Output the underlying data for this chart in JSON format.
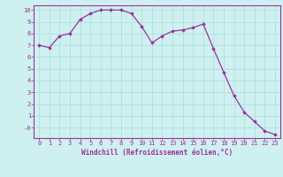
{
  "x": [
    0,
    1,
    2,
    3,
    4,
    5,
    6,
    7,
    8,
    9,
    10,
    11,
    12,
    13,
    14,
    15,
    16,
    17,
    18,
    19,
    20,
    21,
    22,
    23
  ],
  "y": [
    7.0,
    6.8,
    7.8,
    8.0,
    9.2,
    9.7,
    10.0,
    10.0,
    10.0,
    9.7,
    8.6,
    7.2,
    7.8,
    8.2,
    8.3,
    8.5,
    8.8,
    6.7,
    4.7,
    2.7,
    1.3,
    0.5,
    -0.3,
    -0.6
  ],
  "line_color": "#993399",
  "marker": "D",
  "marker_size": 1.8,
  "line_width": 0.9,
  "bg_color": "#cff0f0",
  "grid_color": "#a8dede",
  "xlabel": "Windchill (Refroidissement éolien,°C)",
  "xlabel_color": "#993399",
  "xlabel_fontsize": 5.5,
  "tick_color": "#993399",
  "tick_fontsize": 5.0,
  "ylim": [
    -0.9,
    10.4
  ],
  "xlim": [
    -0.5,
    23.5
  ],
  "yticks": [
    0,
    1,
    2,
    3,
    4,
    5,
    6,
    7,
    8,
    9,
    10
  ],
  "ytick_labels": [
    "-0",
    "1",
    "2",
    "3",
    "4",
    "5",
    "6",
    "7",
    "8",
    "9",
    "10"
  ],
  "xticks": [
    0,
    1,
    2,
    3,
    4,
    5,
    6,
    7,
    8,
    9,
    10,
    11,
    12,
    13,
    14,
    15,
    16,
    17,
    18,
    19,
    20,
    21,
    22,
    23
  ]
}
